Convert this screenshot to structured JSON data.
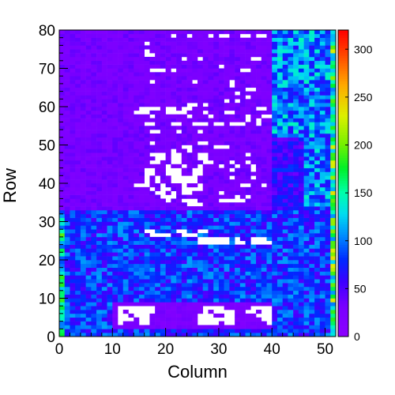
{
  "chart_data": {
    "type": "heatmap",
    "title": "",
    "xlabel": "Column",
    "ylabel": "Row",
    "xlim": [
      0,
      52
    ],
    "ylim": [
      0,
      80
    ],
    "x_ticks": [
      "0",
      "10",
      "20",
      "30",
      "40",
      "50"
    ],
    "y_ticks": [
      "0",
      "10",
      "20",
      "30",
      "40",
      "50",
      "60",
      "70",
      "80"
    ],
    "colorbar": {
      "min": 0,
      "max": 320,
      "ticks": [
        "0",
        "50",
        "100",
        "150",
        "200",
        "250",
        "300"
      ]
    },
    "grid": false,
    "n_columns": 52,
    "n_rows": 80,
    "regions": [
      {
        "cols": [
          0,
          52
        ],
        "rows": [
          0,
          33
        ],
        "value": 80,
        "note": "lower band, mostly blue"
      },
      {
        "cols": [
          0,
          40
        ],
        "rows": [
          33,
          80
        ],
        "value": 30,
        "note": "upper-left block, violet"
      },
      {
        "cols": [
          40,
          46
        ],
        "rows": [
          33,
          52
        ],
        "value": 60,
        "note": "dark blue strip"
      },
      {
        "cols": [
          40,
          52
        ],
        "rows": [
          52,
          80
        ],
        "value": 105,
        "note": "upper-right block, cyan"
      },
      {
        "cols": [
          46,
          52
        ],
        "rows": [
          33,
          52
        ],
        "value": 100,
        "note": "right strip, cyan"
      },
      {
        "cols": [
          51,
          52
        ],
        "rows": [
          0,
          80
        ],
        "value": 170,
        "note": "right edge column, green"
      },
      {
        "cols": [
          10,
          40
        ],
        "rows": [
          2,
          9
        ],
        "value": 25,
        "note": "bottom violet islands"
      }
    ],
    "zero_cells": [
      [
        16,
        76
      ],
      [
        21,
        78
      ],
      [
        24,
        78
      ],
      [
        28,
        78
      ],
      [
        30,
        78
      ],
      [
        31,
        78
      ],
      [
        34,
        78
      ],
      [
        35,
        78
      ],
      [
        37,
        78
      ],
      [
        38,
        78
      ],
      [
        16,
        74
      ],
      [
        16,
        73
      ],
      [
        17,
        73
      ],
      [
        23,
        72
      ],
      [
        26,
        72
      ],
      [
        36,
        72
      ],
      [
        37,
        72
      ],
      [
        30,
        70
      ],
      [
        17,
        69
      ],
      [
        18,
        69
      ],
      [
        19,
        69
      ],
      [
        21,
        69
      ],
      [
        34,
        69
      ],
      [
        35,
        69
      ],
      [
        17,
        66
      ],
      [
        25,
        66
      ],
      [
        32,
        66
      ],
      [
        32,
        65
      ],
      [
        35,
        64
      ],
      [
        36,
        64
      ],
      [
        33,
        63
      ],
      [
        35,
        62
      ],
      [
        31,
        61
      ],
      [
        33,
        61
      ],
      [
        24,
        60
      ],
      [
        25,
        60
      ],
      [
        27,
        60
      ],
      [
        37,
        59
      ],
      [
        38,
        59
      ],
      [
        15,
        59
      ],
      [
        16,
        59
      ],
      [
        17,
        59
      ],
      [
        18,
        59
      ],
      [
        20,
        59
      ],
      [
        21,
        59
      ],
      [
        23,
        59
      ],
      [
        24,
        59
      ],
      [
        14,
        58
      ],
      [
        15,
        58
      ],
      [
        16,
        58
      ],
      [
        20,
        58
      ],
      [
        21,
        58
      ],
      [
        22,
        58
      ],
      [
        23,
        58
      ],
      [
        27,
        58
      ],
      [
        31,
        58
      ],
      [
        32,
        58
      ],
      [
        17,
        57
      ],
      [
        24,
        57
      ],
      [
        28,
        57
      ],
      [
        35,
        57
      ],
      [
        38,
        57
      ],
      [
        39,
        57
      ],
      [
        35,
        56
      ],
      [
        37,
        56
      ],
      [
        16,
        55
      ],
      [
        17,
        55
      ],
      [
        21,
        55
      ],
      [
        22,
        55
      ],
      [
        25,
        55
      ],
      [
        26,
        55
      ],
      [
        27,
        55
      ],
      [
        29,
        55
      ],
      [
        30,
        55
      ],
      [
        32,
        55
      ],
      [
        33,
        55
      ],
      [
        34,
        55
      ],
      [
        37,
        55
      ],
      [
        17,
        53
      ],
      [
        18,
        53
      ],
      [
        22,
        53
      ],
      [
        26,
        53
      ],
      [
        17,
        50
      ],
      [
        26,
        50
      ],
      [
        27,
        50
      ],
      [
        23,
        49
      ],
      [
        24,
        49
      ],
      [
        29,
        49
      ],
      [
        30,
        49
      ],
      [
        31,
        49
      ],
      [
        21,
        48
      ],
      [
        24,
        48
      ],
      [
        17,
        47
      ],
      [
        18,
        47
      ],
      [
        19,
        47
      ],
      [
        21,
        47
      ],
      [
        22,
        47
      ],
      [
        26,
        47
      ],
      [
        27,
        47
      ],
      [
        35,
        47
      ],
      [
        18,
        46
      ],
      [
        19,
        46
      ],
      [
        21,
        46
      ],
      [
        22,
        46
      ],
      [
        26,
        46
      ],
      [
        27,
        46
      ],
      [
        17,
        45
      ],
      [
        18,
        45
      ],
      [
        21,
        45
      ],
      [
        22,
        45
      ],
      [
        27,
        45
      ],
      [
        28,
        45
      ],
      [
        32,
        45
      ],
      [
        35,
        45
      ],
      [
        20,
        44
      ],
      [
        23,
        44
      ],
      [
        26,
        44
      ],
      [
        30,
        44
      ],
      [
        33,
        44
      ],
      [
        36,
        44
      ],
      [
        16,
        43
      ],
      [
        17,
        43
      ],
      [
        20,
        43
      ],
      [
        21,
        43
      ],
      [
        22,
        43
      ],
      [
        25,
        43
      ],
      [
        26,
        43
      ],
      [
        32,
        43
      ],
      [
        36,
        43
      ],
      [
        16,
        42
      ],
      [
        17,
        42
      ],
      [
        20,
        42
      ],
      [
        21,
        42
      ],
      [
        22,
        42
      ],
      [
        25,
        42
      ],
      [
        26,
        42
      ],
      [
        16,
        41
      ],
      [
        18,
        41
      ],
      [
        21,
        41
      ],
      [
        22,
        41
      ],
      [
        23,
        41
      ],
      [
        24,
        41
      ],
      [
        25,
        41
      ],
      [
        32,
        41
      ],
      [
        36,
        41
      ],
      [
        16,
        40
      ],
      [
        18,
        40
      ],
      [
        21,
        40
      ],
      [
        22,
        40
      ],
      [
        23,
        40
      ],
      [
        24,
        40
      ],
      [
        25,
        40
      ],
      [
        14,
        39
      ],
      [
        15,
        39
      ],
      [
        16,
        39
      ],
      [
        19,
        39
      ],
      [
        23,
        39
      ],
      [
        26,
        39
      ],
      [
        34,
        39
      ],
      [
        35,
        39
      ],
      [
        38,
        39
      ],
      [
        17,
        38
      ],
      [
        19,
        38
      ],
      [
        20,
        38
      ],
      [
        23,
        38
      ],
      [
        24,
        38
      ],
      [
        25,
        38
      ],
      [
        26,
        38
      ],
      [
        18,
        37
      ],
      [
        19,
        37
      ],
      [
        21,
        37
      ],
      [
        23,
        37
      ],
      [
        24,
        37
      ],
      [
        30,
        37
      ],
      [
        19,
        36
      ],
      [
        20,
        36
      ],
      [
        21,
        36
      ],
      [
        33,
        36
      ],
      [
        35,
        36
      ],
      [
        20,
        35
      ],
      [
        23,
        35
      ],
      [
        24,
        35
      ],
      [
        25,
        35
      ],
      [
        30,
        35
      ],
      [
        31,
        35
      ],
      [
        32,
        35
      ],
      [
        33,
        35
      ],
      [
        34,
        35
      ],
      [
        24,
        34
      ],
      [
        25,
        34
      ],
      [
        26,
        34
      ],
      [
        16,
        27
      ],
      [
        17,
        27
      ],
      [
        22,
        27
      ],
      [
        23,
        27
      ],
      [
        26,
        27
      ],
      [
        27,
        27
      ],
      [
        17,
        26
      ],
      [
        18,
        26
      ],
      [
        19,
        26
      ],
      [
        20,
        26
      ],
      [
        23,
        26
      ],
      [
        24,
        26
      ],
      [
        25,
        26
      ],
      [
        26,
        25
      ],
      [
        27,
        25
      ],
      [
        28,
        25
      ],
      [
        29,
        25
      ],
      [
        30,
        25
      ],
      [
        31,
        25
      ],
      [
        33,
        25
      ],
      [
        36,
        25
      ],
      [
        37,
        25
      ],
      [
        38,
        25
      ],
      [
        26,
        24
      ],
      [
        27,
        24
      ],
      [
        28,
        24
      ],
      [
        29,
        24
      ],
      [
        30,
        24
      ],
      [
        31,
        24
      ],
      [
        33,
        24
      ],
      [
        34,
        24
      ],
      [
        36,
        24
      ],
      [
        37,
        24
      ],
      [
        38,
        24
      ],
      [
        39,
        24
      ],
      [
        11,
        7
      ],
      [
        12,
        7
      ],
      [
        13,
        7
      ],
      [
        14,
        7
      ],
      [
        15,
        7
      ],
      [
        16,
        7
      ],
      [
        17,
        7
      ],
      [
        27,
        7
      ],
      [
        28,
        7
      ],
      [
        29,
        7
      ],
      [
        30,
        7
      ],
      [
        36,
        7
      ],
      [
        37,
        7
      ],
      [
        38,
        7
      ],
      [
        39,
        7
      ],
      [
        11,
        6
      ],
      [
        13,
        6
      ],
      [
        14,
        6
      ],
      [
        15,
        6
      ],
      [
        16,
        6
      ],
      [
        17,
        6
      ],
      [
        27,
        6
      ],
      [
        29,
        6
      ],
      [
        30,
        6
      ],
      [
        31,
        6
      ],
      [
        32,
        6
      ],
      [
        35,
        6
      ],
      [
        36,
        6
      ],
      [
        38,
        6
      ],
      [
        39,
        6
      ],
      [
        11,
        5
      ],
      [
        12,
        5
      ],
      [
        14,
        5
      ],
      [
        15,
        5
      ],
      [
        16,
        5
      ],
      [
        26,
        5
      ],
      [
        27,
        5
      ],
      [
        28,
        5
      ],
      [
        31,
        5
      ],
      [
        32,
        5
      ],
      [
        37,
        5
      ],
      [
        38,
        5
      ],
      [
        39,
        5
      ],
      [
        11,
        4
      ],
      [
        12,
        4
      ],
      [
        13,
        4
      ],
      [
        15,
        4
      ],
      [
        16,
        4
      ],
      [
        26,
        4
      ],
      [
        27,
        4
      ],
      [
        28,
        4
      ],
      [
        29,
        4
      ],
      [
        30,
        4
      ],
      [
        31,
        4
      ],
      [
        32,
        4
      ],
      [
        38,
        4
      ],
      [
        39,
        4
      ],
      [
        11,
        3
      ],
      [
        15,
        3
      ],
      [
        16,
        3
      ],
      [
        26,
        3
      ],
      [
        27,
        3
      ],
      [
        28,
        3
      ],
      [
        29,
        3
      ],
      [
        31,
        3
      ],
      [
        32,
        3
      ],
      [
        39,
        3
      ]
    ]
  }
}
